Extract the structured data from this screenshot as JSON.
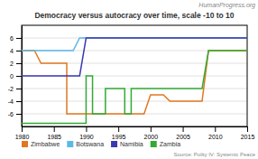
{
  "chart_data": {
    "type": "line",
    "title": "Democracy versus autocracy over time, scale -10 to 10",
    "annotations": [
      "HumanProgress.org",
      "Source: Polity IV: Systemic Peace"
    ],
    "xlim": [
      1980,
      2015
    ],
    "xticks": [
      1980,
      1985,
      1990,
      1995,
      2000,
      2005,
      2010,
      2015
    ],
    "ylim": [
      -8,
      8
    ],
    "yticks": [
      -6,
      -4,
      -2,
      0,
      2,
      4,
      6
    ],
    "grid": true,
    "legend": "lower left",
    "series": [
      {
        "name": "Zimbabwe",
        "color": "#E07820",
        "x": [
          1980,
          1982,
          1983,
          1987,
          1987,
          1999,
          2000,
          2002,
          2003,
          2008,
          2009,
          2015
        ],
        "values": [
          4,
          4,
          2,
          2,
          -6,
          -6,
          -3,
          -3,
          -4,
          -4,
          4,
          4
        ]
      },
      {
        "name": "Botswana",
        "color": "#5BB8E8",
        "x": [
          1980,
          1988,
          1989,
          2015
        ],
        "values": [
          4,
          4,
          6,
          6
        ]
      },
      {
        "name": "Namibia",
        "color": "#3A3AB0",
        "x": [
          1980,
          1989,
          1990,
          2015
        ],
        "values": [
          0,
          0,
          6,
          6
        ]
      },
      {
        "name": "Zambia",
        "color": "#33AA33",
        "x": [
          1980,
          1990,
          1990,
          1991,
          1991,
          1993,
          1993,
          1996,
          1996,
          1997,
          1997,
          2008,
          2009,
          2015
        ],
        "values": [
          -7.5,
          -7.5,
          0,
          0,
          -6,
          -6,
          -2,
          -2,
          -6,
          -6,
          -2,
          -2,
          4,
          4
        ]
      }
    ]
  }
}
